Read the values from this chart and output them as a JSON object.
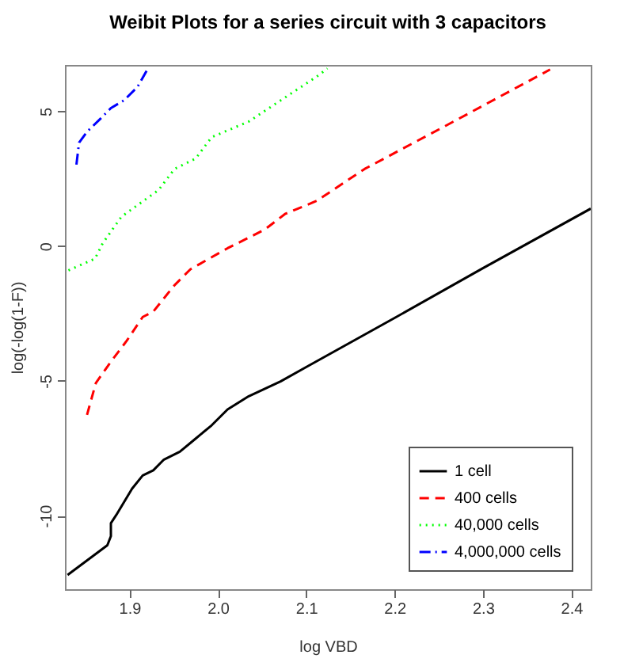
{
  "chart_data": {
    "type": "line",
    "title": "Weibit Plots for a series circuit with 3 capacitors",
    "xlabel": "log VBD",
    "ylabel": "log(-log(1-F))",
    "xlim": [
      1.827,
      2.422
    ],
    "ylim": [
      -12.73,
      6.72
    ],
    "xticks": [
      1.9,
      {
        "value": 2,
        "label": "2.0"
      },
      2.1,
      2.2,
      2.3,
      2.4
    ],
    "yticks": [
      -10,
      -5,
      0,
      5
    ],
    "grid": false,
    "legend": "bottom right",
    "series": [
      {
        "name": "1 cell",
        "color": "#000000",
        "line_style": "solid",
        "x": [
          1.83,
          1.875,
          1.879,
          1.879,
          1.885,
          1.894,
          1.903,
          1.915,
          1.927,
          1.939,
          1.957,
          1.975,
          1.993,
          2.011,
          2.035,
          2.071,
          2.1,
          2.202,
          2.3,
          2.422
        ],
        "values": [
          -12.2,
          -11.1,
          -10.76,
          -10.28,
          -9.98,
          -9.49,
          -9.0,
          -8.51,
          -8.32,
          -7.92,
          -7.63,
          -7.14,
          -6.65,
          -6.06,
          -5.57,
          -5.02,
          -4.49,
          -2.63,
          -0.82,
          1.39
        ]
      },
      {
        "name": "400 cells",
        "color": "#ff0000",
        "line_style": "dashed",
        "x": [
          1.852,
          1.862,
          1.879,
          1.897,
          1.915,
          1.927,
          1.951,
          1.969,
          2.011,
          2.053,
          2.076,
          2.112,
          2.166,
          2.256,
          2.376
        ],
        "values": [
          -6.26,
          -5.08,
          -4.29,
          -3.51,
          -2.63,
          -2.43,
          -1.45,
          -0.86,
          -0.08,
          0.61,
          1.19,
          1.68,
          2.86,
          4.43,
          6.55
        ]
      },
      {
        "name": "40,000 cells",
        "color": "#00ff00",
        "line_style": "dotted",
        "x": [
          1.831,
          1.861,
          1.87,
          1.891,
          1.933,
          1.951,
          1.975,
          1.993,
          2.035,
          2.076,
          2.112,
          2.124
        ],
        "values": [
          -0.9,
          -0.47,
          0.12,
          1.09,
          2.08,
          2.86,
          3.25,
          4.04,
          4.62,
          5.51,
          6.29,
          6.59
        ]
      },
      {
        "name": "4,000,000 cells",
        "color": "#0000ff",
        "line_style": "dashdot",
        "x": [
          1.84,
          1.843,
          1.852,
          1.867,
          1.879,
          1.894,
          1.909,
          1.921
        ],
        "values": [
          3.02,
          3.84,
          4.24,
          4.72,
          5.12,
          5.41,
          5.9,
          6.59
        ]
      }
    ]
  }
}
